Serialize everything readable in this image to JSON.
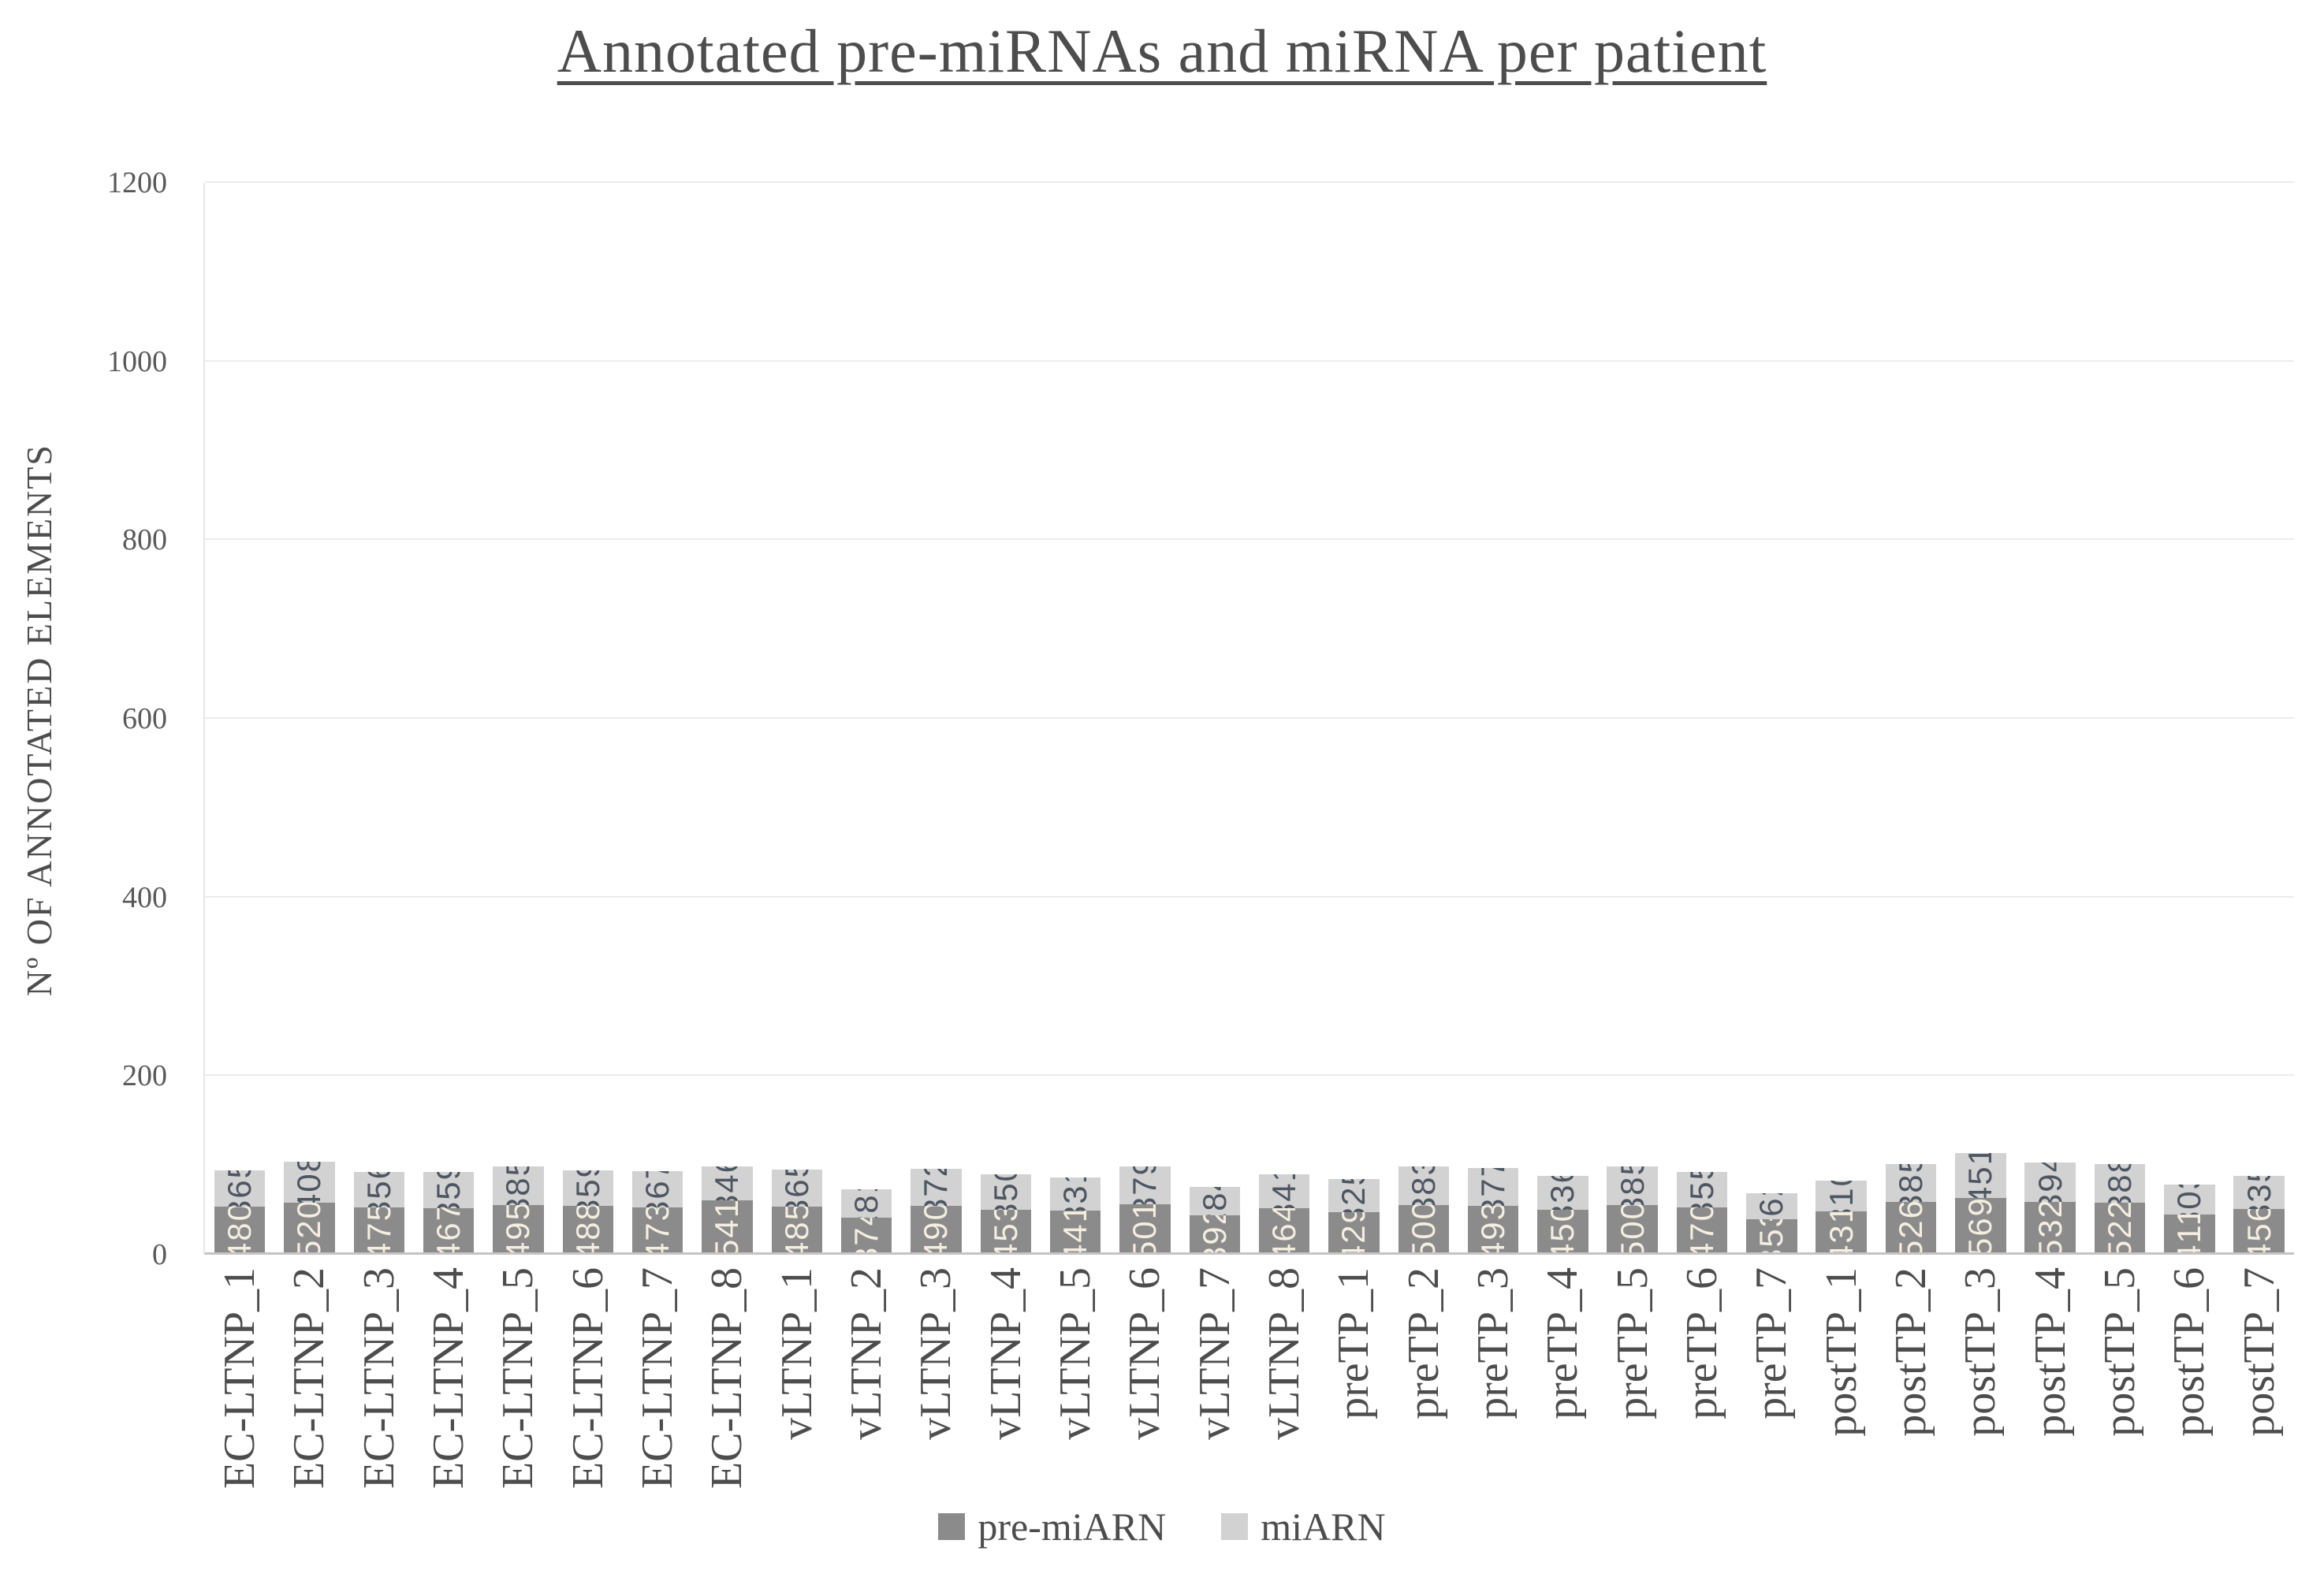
{
  "title": "Annotated pre-miRNAs and miRNA per patient",
  "chart_data": {
    "type": "bar",
    "stacked": true,
    "title": "Annotated pre-miRNAs and miRNA per patient",
    "xlabel": "",
    "ylabel": "Nº OF ANNOTATED ELEMENTS",
    "ylim": [
      0,
      1200
    ],
    "yticks": [
      0,
      200,
      400,
      600,
      800,
      1000,
      1200
    ],
    "grid": true,
    "legend_position": "bottom",
    "categories": [
      "EC-LTNP_1",
      "EC-LTNP_2",
      "EC-LTNP_3",
      "EC-LTNP_4",
      "EC-LTNP_5",
      "EC-LTNP_6",
      "EC-LTNP_7",
      "EC-LTNP_8",
      "vLTNP_1",
      "vLTNP_2",
      "vLTNP_3",
      "vLTNP_4",
      "vLTNP_5",
      "vLTNP_6",
      "vLTNP_7",
      "vLTNP_8",
      "preTP_1",
      "preTP_2",
      "preTP_3",
      "preTP_4",
      "preTP_5",
      "preTP_6",
      "preTP_7",
      "postTP_1",
      "postTP_2",
      "postTP_3",
      "postTP_4",
      "postTP_5",
      "postTP_6",
      "postTP_7"
    ],
    "series": [
      {
        "name": "pre-miARN",
        "color": "#8b8b8b",
        "label_color": "#f4eee0",
        "values": [
          480,
          520,
          475,
          467,
          495,
          488,
          473,
          541,
          485,
          374,
          490,
          453,
          441,
          501,
          392,
          464,
          429,
          500,
          493,
          450,
          500,
          470,
          353,
          431,
          526,
          569,
          532,
          522,
          411,
          456
        ]
      },
      {
        "name": "miARN",
        "color": "#d2d2d2",
        "label_color": "#4e5662",
        "values": [
          365,
          408,
          356,
          359,
          385,
          359,
          367,
          346,
          365,
          281,
          372,
          350,
          331,
          379,
          284,
          341,
          325,
          383,
          377,
          336,
          385,
          355,
          262,
          310,
          385,
          451,
          394,
          388,
          303,
          335
        ]
      }
    ]
  },
  "colors": {
    "title_text": "#4d4d4d",
    "axis_text": "#595959",
    "gridline": "#ececec",
    "baseline": "#c4c4c4",
    "background": "#ffffff"
  }
}
